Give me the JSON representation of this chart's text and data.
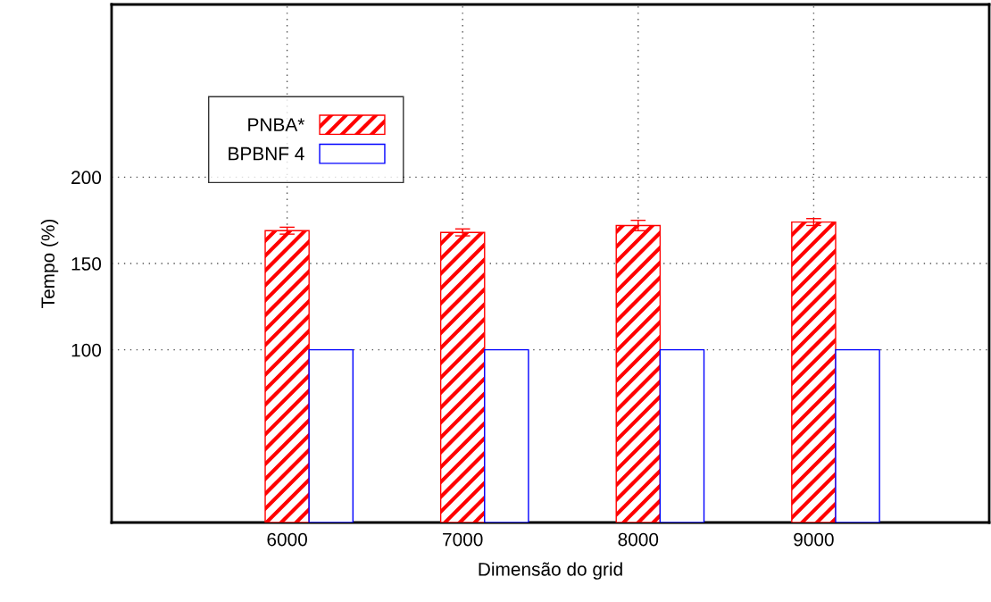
{
  "chart_data": {
    "type": "bar",
    "xlabel": "Dimensão do grid",
    "ylabel": "Tempo (%)",
    "x": [
      6000,
      7000,
      8000,
      9000
    ],
    "series": [
      {
        "name": "PNBA*",
        "color": "#ff0000",
        "values": [
          169,
          168,
          172,
          174
        ],
        "errors": [
          2,
          2,
          3,
          2
        ]
      },
      {
        "name": "BPBNF 4",
        "color": "#0000ff",
        "values": [
          100,
          100,
          100,
          100
        ]
      }
    ],
    "xlim": [
      5000,
      10000
    ],
    "xticks": [
      6000,
      7000,
      8000,
      9000
    ],
    "ylim": [
      0,
      300
    ],
    "yticks": [
      100,
      150,
      200
    ],
    "grid": true,
    "legend": "top left"
  }
}
